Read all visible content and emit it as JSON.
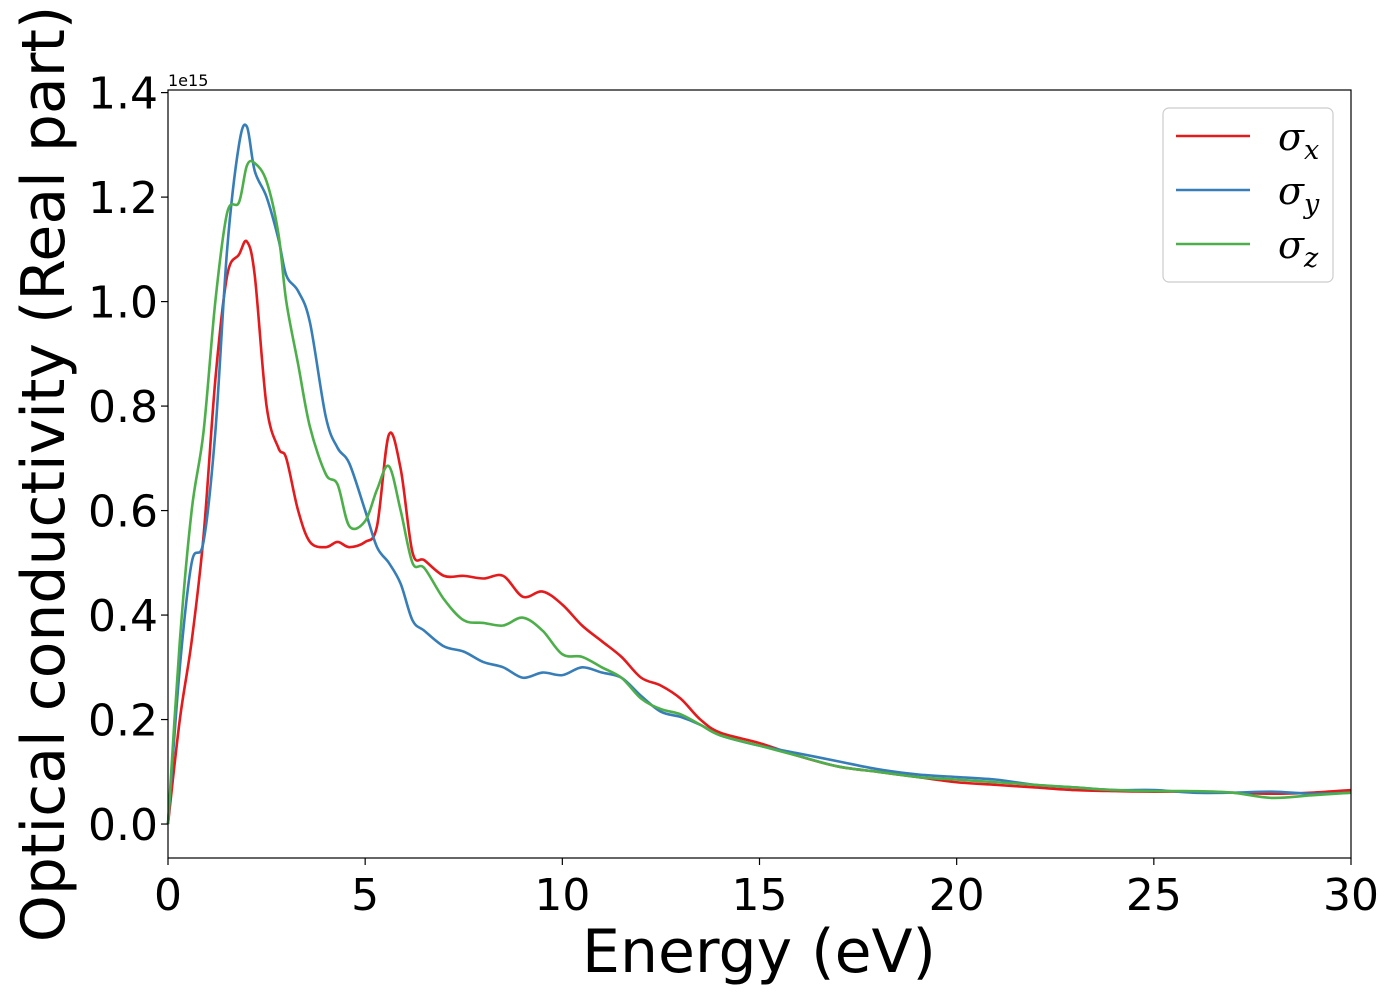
{
  "chart_data": {
    "type": "line",
    "title": "",
    "xlabel": "Energy (eV)",
    "ylabel": "Optical conductivity (Real part)",
    "y_offset_label": "1e15",
    "y_scale": 1000000000000000.0,
    "xlim": [
      0,
      30
    ],
    "ylim": [
      -0.065,
      1.405
    ],
    "x_ticks": [
      0,
      5,
      10,
      15,
      20,
      25,
      30
    ],
    "x_tick_labels": [
      "0",
      "5",
      "10",
      "15",
      "20",
      "25",
      "30"
    ],
    "y_ticks": [
      0.0,
      0.2,
      0.4,
      0.6,
      0.8,
      1.0,
      1.2,
      1.4
    ],
    "y_tick_labels": [
      "0.0",
      "0.2",
      "0.4",
      "0.6",
      "0.8",
      "1.0",
      "1.2",
      "1.4"
    ],
    "grid": false,
    "legend_position": "top-right",
    "series": [
      {
        "name": "σ",
        "subscript": "x",
        "color": "#e41a1c",
        "x": [
          0,
          0.3,
          0.6,
          0.9,
          1.2,
          1.5,
          1.8,
          2.0,
          2.2,
          2.5,
          2.8,
          3.0,
          3.3,
          3.6,
          4.0,
          4.3,
          4.6,
          5.0,
          5.3,
          5.6,
          5.9,
          6.2,
          6.5,
          7.0,
          7.5,
          8.0,
          8.5,
          9.0,
          9.5,
          10.0,
          10.5,
          11.0,
          11.5,
          12.0,
          12.5,
          13.0,
          13.5,
          14.0,
          15.0,
          16.0,
          17.0,
          18.0,
          19.0,
          20.0,
          21.0,
          22.0,
          23.0,
          24.0,
          25.0,
          26.0,
          27.0,
          28.0,
          29.0,
          30.0
        ],
        "y": [
          0.0,
          0.2,
          0.35,
          0.55,
          0.85,
          1.05,
          1.09,
          1.115,
          1.05,
          0.8,
          0.72,
          0.7,
          0.6,
          0.54,
          0.53,
          0.54,
          0.53,
          0.54,
          0.57,
          0.745,
          0.68,
          0.52,
          0.505,
          0.475,
          0.475,
          0.47,
          0.475,
          0.435,
          0.445,
          0.42,
          0.38,
          0.35,
          0.32,
          0.28,
          0.265,
          0.24,
          0.2,
          0.175,
          0.155,
          0.13,
          0.11,
          0.1,
          0.09,
          0.08,
          0.075,
          0.07,
          0.065,
          0.063,
          0.062,
          0.062,
          0.06,
          0.058,
          0.06,
          0.065
        ]
      },
      {
        "name": "σ",
        "subscript": "y",
        "color": "#377eb8",
        "x": [
          0,
          0.3,
          0.6,
          0.9,
          1.2,
          1.5,
          1.8,
          2.0,
          2.2,
          2.5,
          2.8,
          3.0,
          3.3,
          3.6,
          4.0,
          4.3,
          4.6,
          5.0,
          5.3,
          5.6,
          5.9,
          6.2,
          6.5,
          7.0,
          7.5,
          8.0,
          8.5,
          9.0,
          9.5,
          10.0,
          10.5,
          11.0,
          11.5,
          12.0,
          12.5,
          13.0,
          13.5,
          14.0,
          15.0,
          16.0,
          17.0,
          18.0,
          19.0,
          20.0,
          21.0,
          22.0,
          23.0,
          24.0,
          25.0,
          26.0,
          27.0,
          28.0,
          29.0,
          30.0
        ],
        "y": [
          0.0,
          0.3,
          0.5,
          0.54,
          0.75,
          1.1,
          1.3,
          1.335,
          1.25,
          1.2,
          1.12,
          1.05,
          1.02,
          0.96,
          0.78,
          0.72,
          0.69,
          0.6,
          0.53,
          0.5,
          0.46,
          0.39,
          0.37,
          0.34,
          0.33,
          0.31,
          0.3,
          0.28,
          0.29,
          0.285,
          0.3,
          0.29,
          0.28,
          0.245,
          0.215,
          0.205,
          0.19,
          0.17,
          0.15,
          0.135,
          0.12,
          0.105,
          0.095,
          0.09,
          0.085,
          0.075,
          0.07,
          0.065,
          0.065,
          0.06,
          0.06,
          0.062,
          0.058,
          0.06
        ]
      },
      {
        "name": "σ",
        "subscript": "z",
        "color": "#4daf4a",
        "x": [
          0,
          0.3,
          0.6,
          0.9,
          1.2,
          1.5,
          1.8,
          2.0,
          2.2,
          2.5,
          2.8,
          3.0,
          3.3,
          3.6,
          4.0,
          4.3,
          4.6,
          5.0,
          5.3,
          5.6,
          5.9,
          6.2,
          6.5,
          7.0,
          7.5,
          8.0,
          8.5,
          9.0,
          9.5,
          10.0,
          10.5,
          11.0,
          11.5,
          12.0,
          12.5,
          13.0,
          13.5,
          14.0,
          15.0,
          16.0,
          17.0,
          18.0,
          19.0,
          20.0,
          21.0,
          22.0,
          23.0,
          24.0,
          25.0,
          26.0,
          27.0,
          28.0,
          29.0,
          30.0
        ],
        "y": [
          0.0,
          0.35,
          0.6,
          0.75,
          1.0,
          1.17,
          1.19,
          1.26,
          1.265,
          1.23,
          1.13,
          1.0,
          0.88,
          0.76,
          0.67,
          0.65,
          0.57,
          0.58,
          0.64,
          0.685,
          0.6,
          0.5,
          0.49,
          0.43,
          0.39,
          0.385,
          0.38,
          0.395,
          0.37,
          0.325,
          0.32,
          0.3,
          0.28,
          0.24,
          0.22,
          0.21,
          0.19,
          0.17,
          0.15,
          0.13,
          0.11,
          0.1,
          0.09,
          0.085,
          0.08,
          0.075,
          0.07,
          0.065,
          0.063,
          0.063,
          0.06,
          0.05,
          0.055,
          0.06
        ]
      }
    ]
  }
}
